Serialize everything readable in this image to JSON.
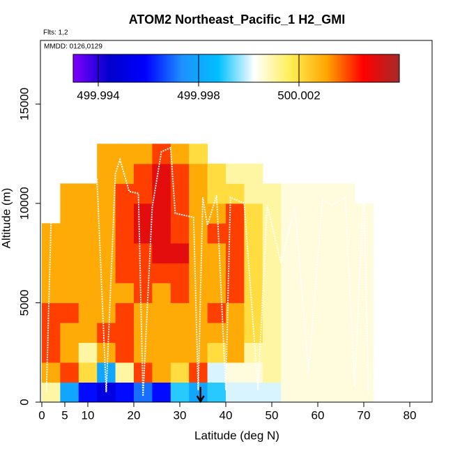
{
  "chart_data": {
    "type": "heatmap",
    "title": "ATOM2 Northeast_Pacific_1 H2_GMI",
    "subtitle": "Flts: 1,2",
    "annotation": "MMDD: 0126,0129",
    "x_label": "Latitude (deg N)",
    "y_label": "Altitude (m)",
    "xlim": [
      0,
      85
    ],
    "ylim": [
      0,
      18200
    ],
    "xticks": [
      0,
      5,
      10,
      20,
      30,
      40,
      50,
      60,
      70,
      80
    ],
    "yticks": [
      0,
      5000,
      10000,
      15000
    ],
    "x_bins": [
      0,
      4,
      8,
      12,
      16,
      20,
      24,
      28,
      32,
      36,
      40,
      44,
      48,
      52,
      56,
      60,
      64,
      68,
      72
    ],
    "y_bins": [
      0,
      1000,
      2000,
      3000,
      4000,
      5000,
      6000,
      7000,
      8000,
      9000,
      10000,
      11000,
      12000,
      13000
    ],
    "z": [
      [
        500.001,
        499.998,
        499.996,
        499.995,
        499.996,
        499.997,
        499.996,
        499.999,
        499.998,
        499.999,
        500.0,
        500.0,
        500.0,
        500.0005,
        500.0005,
        500.0005,
        500.0005,
        500.0005
      ],
      [
        500.003,
        500.004,
        500.002,
        499.998,
        500.001,
        500.004,
        500.003,
        500.002,
        500.004,
        500.0,
        500.0005,
        500.0005,
        500.001,
        500.0005,
        500.0005,
        500.0005,
        500.0005,
        500.0005
      ],
      [
        500.004,
        500.003,
        500.001,
        500.003,
        500.004,
        500.003,
        500.003,
        500.003,
        500.003,
        500.002,
        500.003,
        500.001,
        500.001,
        500.0005,
        500.0005,
        500.0005,
        500.0005,
        500.0005
      ],
      [
        500.004,
        500.003,
        500.003,
        500.004,
        500.004,
        500.003,
        500.003,
        500.003,
        500.003,
        500.003,
        500.003,
        500.002,
        500.001,
        500.0005,
        500.0005,
        500.0005,
        500.0005,
        500.0005
      ],
      [
        500.004,
        500.004,
        500.003,
        500.003,
        500.004,
        500.003,
        500.003,
        500.003,
        500.003,
        500.004,
        500.003,
        500.002,
        500.001,
        500.0005,
        500.0005,
        500.0005,
        500.0005,
        500.0005
      ],
      [
        500.003,
        500.003,
        500.003,
        500.003,
        500.003,
        500.004,
        500.003,
        500.004,
        500.003,
        500.003,
        500.004,
        500.002,
        500.001,
        500.0005,
        500.0005,
        500.0005,
        500.0005,
        500.0005
      ],
      [
        500.003,
        500.003,
        500.003,
        500.003,
        500.004,
        500.004,
        500.004,
        500.004,
        500.003,
        500.003,
        500.004,
        500.002,
        500.001,
        500.0005,
        500.0005,
        500.0005,
        500.0005,
        500.0005
      ],
      [
        500.003,
        500.003,
        500.003,
        500.003,
        500.004,
        500.004,
        500.005,
        500.005,
        500.003,
        500.003,
        500.004,
        500.002,
        500.001,
        500.0005,
        500.0005,
        500.0005,
        500.0005,
        500.0005
      ],
      [
        500.003,
        500.003,
        500.003,
        500.003,
        500.004,
        500.005,
        500.005,
        500.004,
        500.003,
        500.004,
        500.004,
        500.002,
        500.001,
        500.0005,
        500.0005,
        500.0005,
        500.0005,
        500.0005
      ],
      [
        null,
        500.003,
        500.003,
        500.003,
        500.004,
        500.005,
        500.005,
        500.004,
        500.003,
        500.003,
        500.004,
        500.002,
        500.001,
        500.0005,
        500.0005,
        500.0005,
        500.0005,
        500.0005
      ],
      [
        null,
        500.003,
        500.003,
        500.003,
        500.004,
        500.004,
        500.005,
        500.004,
        500.003,
        500.002,
        500.002,
        500.001,
        500.001,
        500.0005,
        500.0005,
        500.0005,
        500.0005,
        null
      ],
      [
        null,
        null,
        null,
        500.003,
        500.003,
        500.004,
        500.005,
        500.004,
        500.003,
        500.002,
        500.001,
        500.001,
        null,
        null,
        null,
        null,
        null,
        null
      ],
      [
        null,
        null,
        null,
        500.003,
        500.003,
        500.003,
        500.004,
        500.003,
        500.002,
        null,
        null,
        null,
        null,
        null,
        null,
        null,
        null,
        null
      ]
    ],
    "colormap": [
      "#7f00ff",
      "#0000cd",
      "#0000ff",
      "#1e90ff",
      "#00bfff",
      "#ffffff",
      "#ffee55",
      "#ffa500",
      "#ff0000",
      "#a52a2a"
    ],
    "clim": [
      499.993,
      500.006
    ],
    "cticks": [
      499.994,
      499.998,
      500.002
    ],
    "track": {
      "color": "#ffffff",
      "x": [
        1,
        2,
        3,
        12,
        14,
        16,
        17,
        19,
        21,
        22,
        24,
        26,
        28,
        29,
        33,
        34,
        35,
        36,
        38,
        40,
        41,
        44,
        47,
        49,
        52,
        55,
        58,
        61,
        63,
        66,
        68,
        70,
        71
      ],
      "y": [
        500,
        9000,
        11200,
        11200,
        500,
        11500,
        12200,
        10600,
        10500,
        300,
        9800,
        12600,
        12800,
        9500,
        9300,
        600,
        10300,
        8900,
        10400,
        600,
        10300,
        10000,
        600,
        9900,
        7000,
        9800,
        1500,
        10200,
        9900,
        10300,
        800,
        11000,
        400
      ]
    },
    "arrow_x": 34.5
  }
}
